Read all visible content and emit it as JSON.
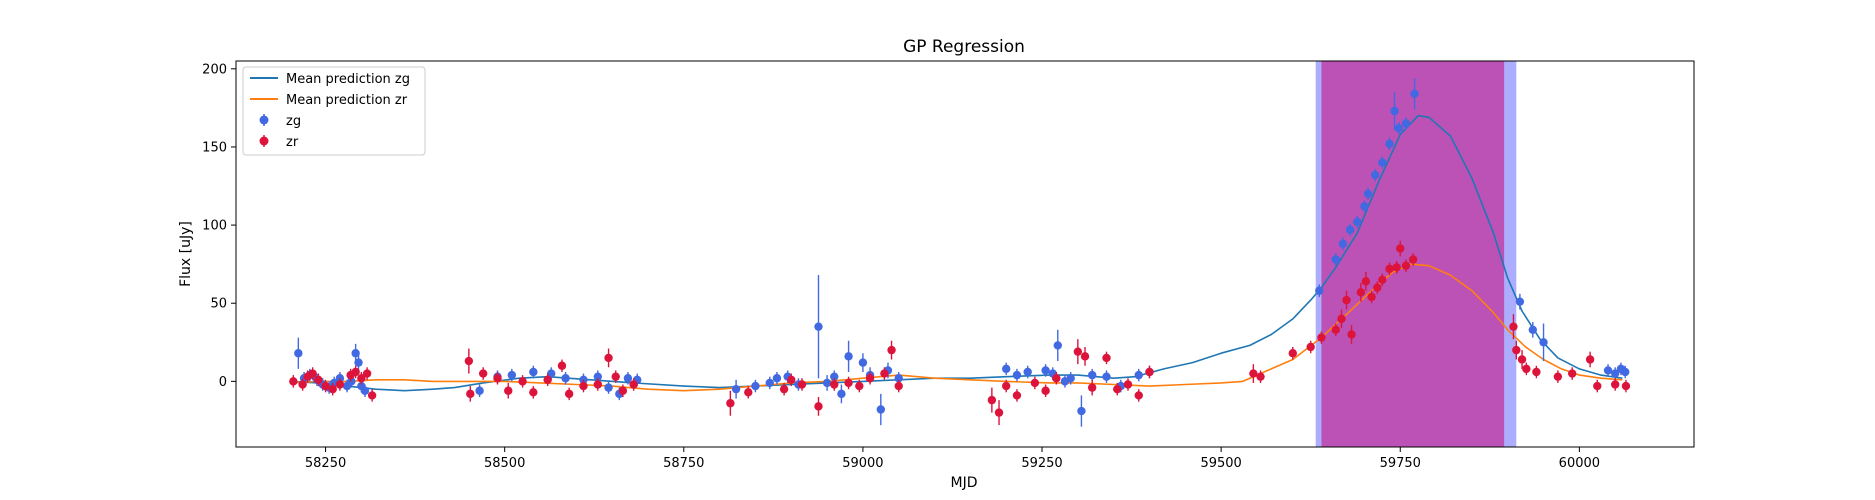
{
  "chart_data": {
    "type": "scatter",
    "title": "GP Regression",
    "xlabel": "MJD",
    "ylabel": "Flux [uJy]",
    "xlim": [
      58125,
      60160
    ],
    "ylim": [
      -42,
      205
    ],
    "xticks": [
      58250,
      58500,
      58750,
      59000,
      59250,
      59500,
      59750,
      60000
    ],
    "yticks": [
      0,
      50,
      100,
      150,
      200
    ],
    "legend_position": "upper left",
    "legend": [
      "Mean prediction zg",
      "Mean prediction zr",
      "zg",
      "zr"
    ],
    "colors": {
      "zg_line": "#1f77b4",
      "zr_line": "#ff7f0e",
      "zg_points": "#4169e1",
      "zr_points": "#dc143c",
      "span_blue": "#0000ff",
      "span_red": "#c71585"
    },
    "shaded_regions": [
      {
        "band": "zg",
        "x_start": 59632,
        "x_end": 59912
      },
      {
        "band": "zr",
        "x_start": 59640,
        "x_end": 59895
      }
    ],
    "series": [
      {
        "name": "Mean prediction zg",
        "kind": "line",
        "points": [
          [
            58200,
            0
          ],
          [
            58240,
            -1
          ],
          [
            58280,
            -3
          ],
          [
            58320,
            -5
          ],
          [
            58360,
            -6
          ],
          [
            58400,
            -5
          ],
          [
            58430,
            -4
          ],
          [
            58470,
            -1
          ],
          [
            58520,
            2
          ],
          [
            58560,
            3
          ],
          [
            58620,
            1
          ],
          [
            58680,
            -1
          ],
          [
            58750,
            -3
          ],
          [
            58800,
            -4
          ],
          [
            58850,
            -3
          ],
          [
            58900,
            -2
          ],
          [
            58950,
            -1
          ],
          [
            59000,
            0
          ],
          [
            59050,
            1
          ],
          [
            59100,
            2
          ],
          [
            59150,
            2
          ],
          [
            59200,
            3
          ],
          [
            59260,
            4
          ],
          [
            59300,
            4
          ],
          [
            59350,
            2
          ],
          [
            59380,
            3
          ],
          [
            59420,
            8
          ],
          [
            59460,
            12
          ],
          [
            59500,
            18
          ],
          [
            59540,
            23
          ],
          [
            59570,
            30
          ],
          [
            59600,
            40
          ],
          [
            59625,
            52
          ],
          [
            59640,
            60
          ],
          [
            59660,
            73
          ],
          [
            59690,
            95
          ],
          [
            59720,
            128
          ],
          [
            59750,
            158
          ],
          [
            59775,
            170
          ],
          [
            59790,
            169
          ],
          [
            59820,
            157
          ],
          [
            59850,
            130
          ],
          [
            59880,
            95
          ],
          [
            59900,
            66
          ],
          [
            59920,
            45
          ],
          [
            59945,
            27
          ],
          [
            59970,
            15
          ],
          [
            60000,
            8
          ],
          [
            60030,
            4
          ],
          [
            60060,
            2
          ]
        ]
      },
      {
        "name": "Mean prediction zr",
        "kind": "line",
        "points": [
          [
            58200,
            -1
          ],
          [
            58240,
            0
          ],
          [
            58280,
            0
          ],
          [
            58320,
            1
          ],
          [
            58360,
            1
          ],
          [
            58400,
            0
          ],
          [
            58450,
            0
          ],
          [
            58500,
            0
          ],
          [
            58550,
            -1
          ],
          [
            58600,
            -2
          ],
          [
            58650,
            -3
          ],
          [
            58700,
            -5
          ],
          [
            58750,
            -6
          ],
          [
            58800,
            -5
          ],
          [
            58850,
            -3
          ],
          [
            58900,
            -1
          ],
          [
            58950,
            0
          ],
          [
            59000,
            2
          ],
          [
            59050,
            4
          ],
          [
            59100,
            2
          ],
          [
            59150,
            1
          ],
          [
            59200,
            0
          ],
          [
            59260,
            -1
          ],
          [
            59300,
            -1
          ],
          [
            59350,
            -2
          ],
          [
            59400,
            -3
          ],
          [
            59450,
            -2
          ],
          [
            59500,
            -1
          ],
          [
            59530,
            0
          ],
          [
            59560,
            6
          ],
          [
            59600,
            14
          ],
          [
            59640,
            28
          ],
          [
            59680,
            45
          ],
          [
            59710,
            58
          ],
          [
            59740,
            70
          ],
          [
            59765,
            75
          ],
          [
            59790,
            74
          ],
          [
            59820,
            68
          ],
          [
            59850,
            58
          ],
          [
            59880,
            44
          ],
          [
            59900,
            33
          ],
          [
            59925,
            22
          ],
          [
            59950,
            14
          ],
          [
            59975,
            8
          ],
          [
            60000,
            4
          ],
          [
            60030,
            2
          ],
          [
            60060,
            1
          ]
        ]
      },
      {
        "name": "zg",
        "kind": "errorbar",
        "points": [
          [
            58212,
            18,
            10
          ],
          [
            58220,
            2,
            4
          ],
          [
            58228,
            4,
            4
          ],
          [
            58238,
            1,
            4
          ],
          [
            58246,
            -2,
            4
          ],
          [
            58255,
            -4,
            4
          ],
          [
            58262,
            -1,
            4
          ],
          [
            58270,
            2,
            4
          ],
          [
            58280,
            -3,
            4
          ],
          [
            58286,
            0,
            4
          ],
          [
            58292,
            18,
            6
          ],
          [
            58296,
            12,
            5
          ],
          [
            58300,
            -3,
            4
          ],
          [
            58305,
            -6,
            4
          ],
          [
            58465,
            -6,
            4
          ],
          [
            58490,
            3,
            4
          ],
          [
            58510,
            4,
            4
          ],
          [
            58540,
            6,
            4
          ],
          [
            58565,
            5,
            4
          ],
          [
            58585,
            2,
            4
          ],
          [
            58610,
            1,
            4
          ],
          [
            58630,
            3,
            4
          ],
          [
            58645,
            -4,
            4
          ],
          [
            58660,
            -8,
            4
          ],
          [
            58672,
            2,
            4
          ],
          [
            58685,
            1,
            4
          ],
          [
            58823,
            -5,
            6
          ],
          [
            58850,
            -3,
            4
          ],
          [
            58870,
            -1,
            4
          ],
          [
            58880,
            2,
            4
          ],
          [
            58895,
            3,
            4
          ],
          [
            58910,
            -2,
            4
          ],
          [
            58938,
            35,
            33
          ],
          [
            58950,
            -1,
            5
          ],
          [
            58960,
            3,
            4
          ],
          [
            58970,
            -8,
            6
          ],
          [
            58980,
            16,
            10
          ],
          [
            59000,
            12,
            6
          ],
          [
            59010,
            4,
            5
          ],
          [
            59025,
            -18,
            10
          ],
          [
            59035,
            7,
            5
          ],
          [
            59050,
            2,
            4
          ],
          [
            59200,
            8,
            4
          ],
          [
            59215,
            4,
            4
          ],
          [
            59230,
            6,
            4
          ],
          [
            59255,
            7,
            4
          ],
          [
            59265,
            5,
            4
          ],
          [
            59272,
            23,
            10
          ],
          [
            59282,
            0,
            4
          ],
          [
            59290,
            2,
            4
          ],
          [
            59305,
            -19,
            10
          ],
          [
            59320,
            4,
            4
          ],
          [
            59340,
            3,
            4
          ],
          [
            59360,
            -3,
            4
          ],
          [
            59385,
            4,
            4
          ],
          [
            59400,
            6,
            4
          ],
          [
            59637,
            58,
            4
          ],
          [
            59660,
            78,
            4
          ],
          [
            59670,
            88,
            4
          ],
          [
            59680,
            97,
            4
          ],
          [
            59690,
            102,
            4
          ],
          [
            59700,
            112,
            4
          ],
          [
            59705,
            120,
            4
          ],
          [
            59715,
            132,
            4
          ],
          [
            59725,
            140,
            4
          ],
          [
            59735,
            152,
            4
          ],
          [
            59742,
            173,
            12
          ],
          [
            59748,
            162,
            4
          ],
          [
            59758,
            165,
            4
          ],
          [
            59770,
            184,
            10
          ],
          [
            59917,
            51,
            5
          ],
          [
            59935,
            33,
            5
          ],
          [
            59950,
            25,
            12
          ],
          [
            60040,
            7,
            4
          ],
          [
            60050,
            5,
            4
          ],
          [
            60058,
            8,
            4
          ],
          [
            60064,
            6,
            4
          ]
        ]
      },
      {
        "name": "zr",
        "kind": "errorbar",
        "points": [
          [
            58205,
            0,
            4
          ],
          [
            58218,
            -2,
            4
          ],
          [
            58225,
            3,
            4
          ],
          [
            58232,
            5,
            4
          ],
          [
            58240,
            1,
            4
          ],
          [
            58250,
            -3,
            4
          ],
          [
            58260,
            -5,
            4
          ],
          [
            58270,
            -2,
            4
          ],
          [
            58285,
            4,
            4
          ],
          [
            58292,
            6,
            4
          ],
          [
            58300,
            2,
            4
          ],
          [
            58308,
            5,
            4
          ],
          [
            58315,
            -9,
            4
          ],
          [
            58450,
            13,
            8
          ],
          [
            58452,
            -8,
            5
          ],
          [
            58470,
            5,
            4
          ],
          [
            58490,
            2,
            4
          ],
          [
            58505,
            -6,
            5
          ],
          [
            58525,
            0,
            4
          ],
          [
            58540,
            -7,
            4
          ],
          [
            58560,
            1,
            4
          ],
          [
            58580,
            10,
            4
          ],
          [
            58590,
            -8,
            4
          ],
          [
            58610,
            -3,
            4
          ],
          [
            58630,
            -2,
            4
          ],
          [
            58645,
            15,
            6
          ],
          [
            58655,
            3,
            4
          ],
          [
            58665,
            -6,
            4
          ],
          [
            58680,
            -2,
            4
          ],
          [
            58815,
            -14,
            8
          ],
          [
            58840,
            -7,
            4
          ],
          [
            58890,
            -5,
            4
          ],
          [
            58900,
            1,
            4
          ],
          [
            58915,
            -2,
            4
          ],
          [
            58938,
            -16,
            6
          ],
          [
            58960,
            -2,
            4
          ],
          [
            58980,
            -1,
            4
          ],
          [
            58995,
            -3,
            4
          ],
          [
            59010,
            2,
            4
          ],
          [
            59030,
            5,
            4
          ],
          [
            59040,
            20,
            6
          ],
          [
            59050,
            -3,
            4
          ],
          [
            59180,
            -12,
            8
          ],
          [
            59190,
            -20,
            8
          ],
          [
            59200,
            -3,
            4
          ],
          [
            59215,
            -9,
            4
          ],
          [
            59240,
            -1,
            4
          ],
          [
            59255,
            -6,
            4
          ],
          [
            59270,
            2,
            4
          ],
          [
            59300,
            19,
            8
          ],
          [
            59310,
            16,
            6
          ],
          [
            59320,
            -4,
            5
          ],
          [
            59340,
            15,
            4
          ],
          [
            59355,
            -5,
            4
          ],
          [
            59370,
            -2,
            4
          ],
          [
            59385,
            -9,
            4
          ],
          [
            59400,
            6,
            4
          ],
          [
            59545,
            5,
            6
          ],
          [
            59555,
            3,
            4
          ],
          [
            59600,
            18,
            4
          ],
          [
            59625,
            22,
            4
          ],
          [
            59640,
            28,
            4
          ],
          [
            59660,
            33,
            4
          ],
          [
            59668,
            40,
            6
          ],
          [
            59675,
            52,
            6
          ],
          [
            59682,
            30,
            6
          ],
          [
            59695,
            57,
            6
          ],
          [
            59702,
            64,
            6
          ],
          [
            59710,
            54,
            4
          ],
          [
            59718,
            60,
            4
          ],
          [
            59725,
            65,
            4
          ],
          [
            59735,
            72,
            4
          ],
          [
            59745,
            73,
            4
          ],
          [
            59750,
            85,
            5
          ],
          [
            59758,
            74,
            4
          ],
          [
            59768,
            78,
            4
          ],
          [
            59908,
            35,
            8
          ],
          [
            59912,
            20,
            6
          ],
          [
            59920,
            14,
            6
          ],
          [
            59926,
            8,
            4
          ],
          [
            59940,
            6,
            4
          ],
          [
            59970,
            3,
            4
          ],
          [
            59990,
            5,
            4
          ],
          [
            60015,
            14,
            5
          ],
          [
            60025,
            -3,
            4
          ],
          [
            60050,
            -2,
            4
          ],
          [
            60065,
            -3,
            4
          ]
        ]
      }
    ]
  }
}
